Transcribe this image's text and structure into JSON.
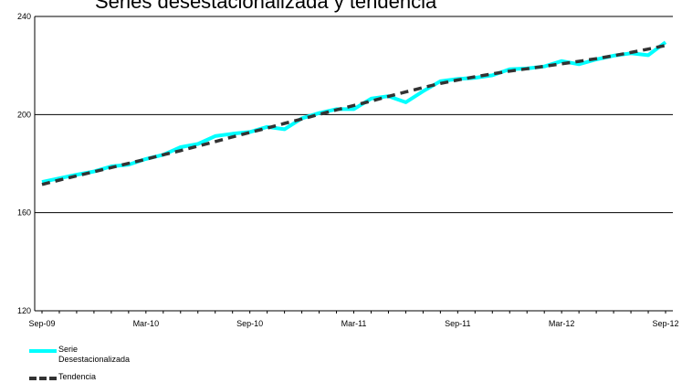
{
  "chart_data": {
    "type": "line",
    "title": "Series desestacionalizada y tendencia",
    "x_tick_labels": [
      "Sep-09",
      "Mar-10",
      "Sep-10",
      "Mar-11",
      "Sep-11",
      "Mar-12",
      "Sep-12"
    ],
    "y_ticks": [
      120,
      160,
      200,
      240
    ],
    "ylim": [
      120,
      240
    ],
    "xlabel": "",
    "ylabel": "",
    "grid": "horizontal",
    "legend_position": "bottom-left",
    "x": [
      "Sep-09",
      "Oct-09",
      "Nov-09",
      "Dec-09",
      "Jan-10",
      "Feb-10",
      "Mar-10",
      "Apr-10",
      "May-10",
      "Jun-10",
      "Jul-10",
      "Aug-10",
      "Sep-10",
      "Oct-10",
      "Nov-10",
      "Dec-10",
      "Jan-11",
      "Feb-11",
      "Mar-11",
      "Apr-11",
      "May-11",
      "Jun-11",
      "Jul-11",
      "Aug-11",
      "Sep-11",
      "Oct-11",
      "Nov-11",
      "Dec-11",
      "Jan-12",
      "Feb-12",
      "Mar-12",
      "Apr-12",
      "May-12",
      "Jun-12",
      "Jul-12",
      "Aug-12",
      "Sep-12"
    ],
    "series": [
      {
        "name": "Serie Desestacionalizada",
        "color": "#00ffff",
        "style": "solid",
        "values": [
          172.5,
          174.0,
          175.5,
          176.8,
          178.9,
          179.6,
          181.9,
          183.6,
          186.7,
          188.0,
          191.2,
          192.2,
          192.9,
          195.0,
          194.0,
          198.5,
          200.6,
          202.2,
          202.2,
          206.5,
          207.5,
          205.0,
          209.5,
          213.6,
          214.5,
          215.0,
          216.0,
          218.5,
          218.8,
          219.6,
          221.8,
          220.5,
          222.5,
          224.0,
          225.0,
          224.2,
          229.5
        ]
      },
      {
        "name": "Tendencia",
        "color": "#333333",
        "style": "dashed",
        "values": [
          171.5,
          173.3,
          175.0,
          176.7,
          178.4,
          180.1,
          181.8,
          183.6,
          185.3,
          187.1,
          189.0,
          190.9,
          192.7,
          194.5,
          196.4,
          198.2,
          200.1,
          201.9,
          203.7,
          205.5,
          207.4,
          209.2,
          211.0,
          212.7,
          214.1,
          215.4,
          216.6,
          217.7,
          218.7,
          219.7,
          220.7,
          221.7,
          222.8,
          224.0,
          225.3,
          226.7,
          228.2
        ]
      }
    ]
  }
}
